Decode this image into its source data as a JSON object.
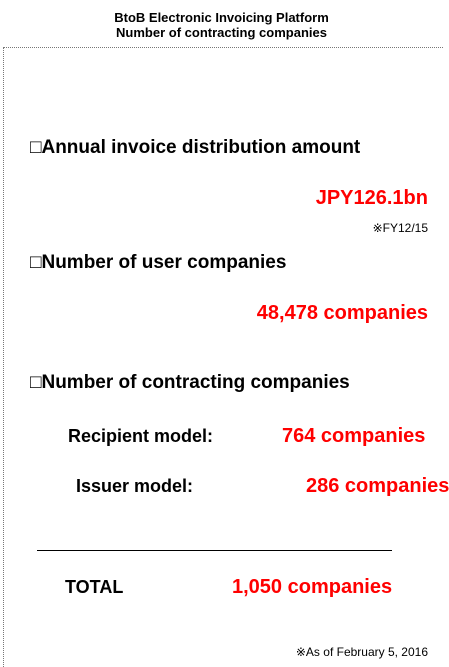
{
  "header": {
    "title": [
      "BtoB Electronic Invoicing Platform",
      "Number of contracting companies"
    ]
  },
  "sections": [
    {
      "heading": "□Annual invoice distribution amount",
      "value": "JPY126.1bn",
      "note": "※FY12/15"
    },
    {
      "heading": "□Number of user companies",
      "value": "48,478 companies"
    },
    {
      "heading": "□Number of contracting companies",
      "rows": [
        {
          "label": "Recipient model:",
          "value": "764 companies"
        },
        {
          "label": "Issuer model:",
          "value": "286 companies"
        }
      ]
    }
  ],
  "total": {
    "label": "TOTAL",
    "value": "1,050 companies"
  },
  "footnote": "※As of February 5, 2016"
}
